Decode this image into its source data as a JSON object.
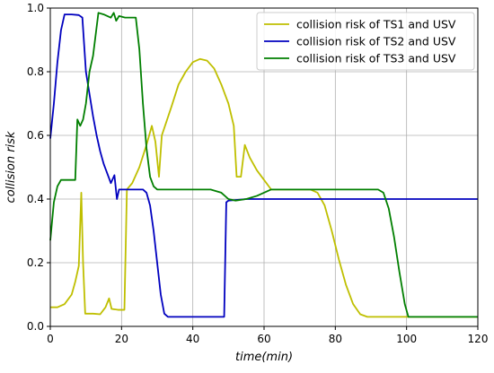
{
  "chart_data": {
    "type": "line",
    "title": "",
    "xlabel": "time(min)",
    "ylabel": "collision risk",
    "xlim": [
      0,
      120
    ],
    "ylim": [
      0,
      1.0
    ],
    "x_ticks": [
      0,
      20,
      40,
      60,
      80,
      100,
      120
    ],
    "y_ticks": [
      0.0,
      0.2,
      0.4,
      0.6,
      0.8,
      1.0
    ],
    "x_tick_labels": [
      "0",
      "20",
      "40",
      "60",
      "80",
      "100",
      "120"
    ],
    "y_tick_labels": [
      "0.0",
      "0.2",
      "0.4",
      "0.6",
      "0.8",
      "1.0"
    ],
    "grid": true,
    "legend_position": "top-right",
    "series": [
      {
        "name": "collision risk of TS1 and USV",
        "color": "#bfbf00",
        "points": [
          [
            0,
            0.06
          ],
          [
            2,
            0.06
          ],
          [
            4,
            0.07
          ],
          [
            6,
            0.1
          ],
          [
            7,
            0.14
          ],
          [
            8,
            0.19
          ],
          [
            8.7,
            0.42
          ],
          [
            9.2,
            0.2
          ],
          [
            9.8,
            0.04
          ],
          [
            12,
            0.04
          ],
          [
            14,
            0.038
          ],
          [
            15.5,
            0.06
          ],
          [
            16.5,
            0.088
          ],
          [
            17.2,
            0.055
          ],
          [
            19,
            0.052
          ],
          [
            20,
            0.052
          ],
          [
            20.8,
            0.052
          ],
          [
            21.5,
            0.43
          ],
          [
            23,
            0.45
          ],
          [
            25,
            0.5
          ],
          [
            27,
            0.57
          ],
          [
            28.5,
            0.63
          ],
          [
            29.5,
            0.58
          ],
          [
            30.5,
            0.47
          ],
          [
            31.3,
            0.6
          ],
          [
            32.5,
            0.64
          ],
          [
            34,
            0.69
          ],
          [
            36,
            0.76
          ],
          [
            38,
            0.8
          ],
          [
            40,
            0.83
          ],
          [
            42,
            0.84
          ],
          [
            44,
            0.835
          ],
          [
            46,
            0.81
          ],
          [
            48,
            0.76
          ],
          [
            50,
            0.7
          ],
          [
            51.5,
            0.63
          ],
          [
            52.3,
            0.47
          ],
          [
            53.5,
            0.47
          ],
          [
            54.6,
            0.57
          ],
          [
            56,
            0.53
          ],
          [
            58,
            0.49
          ],
          [
            60,
            0.46
          ],
          [
            62,
            0.43
          ],
          [
            66,
            0.43
          ],
          [
            70,
            0.43
          ],
          [
            73,
            0.43
          ],
          [
            75,
            0.42
          ],
          [
            77,
            0.38
          ],
          [
            79,
            0.3
          ],
          [
            81,
            0.21
          ],
          [
            83,
            0.13
          ],
          [
            85,
            0.07
          ],
          [
            87,
            0.038
          ],
          [
            89,
            0.03
          ],
          [
            95,
            0.03
          ],
          [
            110,
            0.03
          ],
          [
            120,
            0.03
          ]
        ]
      },
      {
        "name": "collision risk of TS2 and USV",
        "color": "#0000bf",
        "points": [
          [
            0,
            0.59
          ],
          [
            1,
            0.7
          ],
          [
            2,
            0.83
          ],
          [
            3,
            0.93
          ],
          [
            4,
            0.98
          ],
          [
            6,
            0.98
          ],
          [
            8,
            0.978
          ],
          [
            9,
            0.97
          ],
          [
            10,
            0.8
          ],
          [
            11,
            0.73
          ],
          [
            12,
            0.66
          ],
          [
            13,
            0.6
          ],
          [
            14,
            0.55
          ],
          [
            15,
            0.51
          ],
          [
            16,
            0.48
          ],
          [
            17,
            0.45
          ],
          [
            18,
            0.475
          ],
          [
            18.7,
            0.4
          ],
          [
            19.3,
            0.43
          ],
          [
            21,
            0.43
          ],
          [
            26,
            0.43
          ],
          [
            27,
            0.42
          ],
          [
            28,
            0.38
          ],
          [
            29,
            0.3
          ],
          [
            30,
            0.2
          ],
          [
            31,
            0.1
          ],
          [
            32,
            0.04
          ],
          [
            33,
            0.03
          ],
          [
            40,
            0.03
          ],
          [
            45,
            0.03
          ],
          [
            48.8,
            0.03
          ],
          [
            49.4,
            0.39
          ],
          [
            50,
            0.395
          ],
          [
            55,
            0.4
          ],
          [
            60,
            0.4
          ],
          [
            70,
            0.4
          ],
          [
            80,
            0.4
          ],
          [
            90,
            0.4
          ],
          [
            100,
            0.4
          ],
          [
            110,
            0.4
          ],
          [
            120,
            0.4
          ]
        ]
      },
      {
        "name": "collision risk of TS3 and USV",
        "color": "#007f00",
        "points": [
          [
            0,
            0.27
          ],
          [
            1,
            0.39
          ],
          [
            2,
            0.44
          ],
          [
            3,
            0.46
          ],
          [
            5,
            0.46
          ],
          [
            7,
            0.46
          ],
          [
            7.6,
            0.65
          ],
          [
            8.4,
            0.63
          ],
          [
            9.2,
            0.65
          ],
          [
            10,
            0.7
          ],
          [
            11,
            0.8
          ],
          [
            12,
            0.85
          ],
          [
            13.5,
            0.985
          ],
          [
            15,
            0.98
          ],
          [
            17,
            0.97
          ],
          [
            17.8,
            0.985
          ],
          [
            18.5,
            0.96
          ],
          [
            19.3,
            0.975
          ],
          [
            21,
            0.97
          ],
          [
            24,
            0.97
          ],
          [
            25,
            0.87
          ],
          [
            26,
            0.7
          ],
          [
            27,
            0.56
          ],
          [
            28,
            0.47
          ],
          [
            29,
            0.44
          ],
          [
            30,
            0.43
          ],
          [
            35,
            0.43
          ],
          [
            40,
            0.43
          ],
          [
            45,
            0.43
          ],
          [
            48,
            0.42
          ],
          [
            50,
            0.4
          ],
          [
            52,
            0.395
          ],
          [
            55,
            0.4
          ],
          [
            58,
            0.41
          ],
          [
            62,
            0.43
          ],
          [
            70,
            0.43
          ],
          [
            80,
            0.43
          ],
          [
            88,
            0.43
          ],
          [
            92,
            0.43
          ],
          [
            93.5,
            0.42
          ],
          [
            95,
            0.37
          ],
          [
            96.5,
            0.28
          ],
          [
            98,
            0.17
          ],
          [
            99.5,
            0.07
          ],
          [
            100.5,
            0.03
          ],
          [
            105,
            0.03
          ],
          [
            110,
            0.03
          ],
          [
            120,
            0.03
          ]
        ]
      }
    ]
  }
}
